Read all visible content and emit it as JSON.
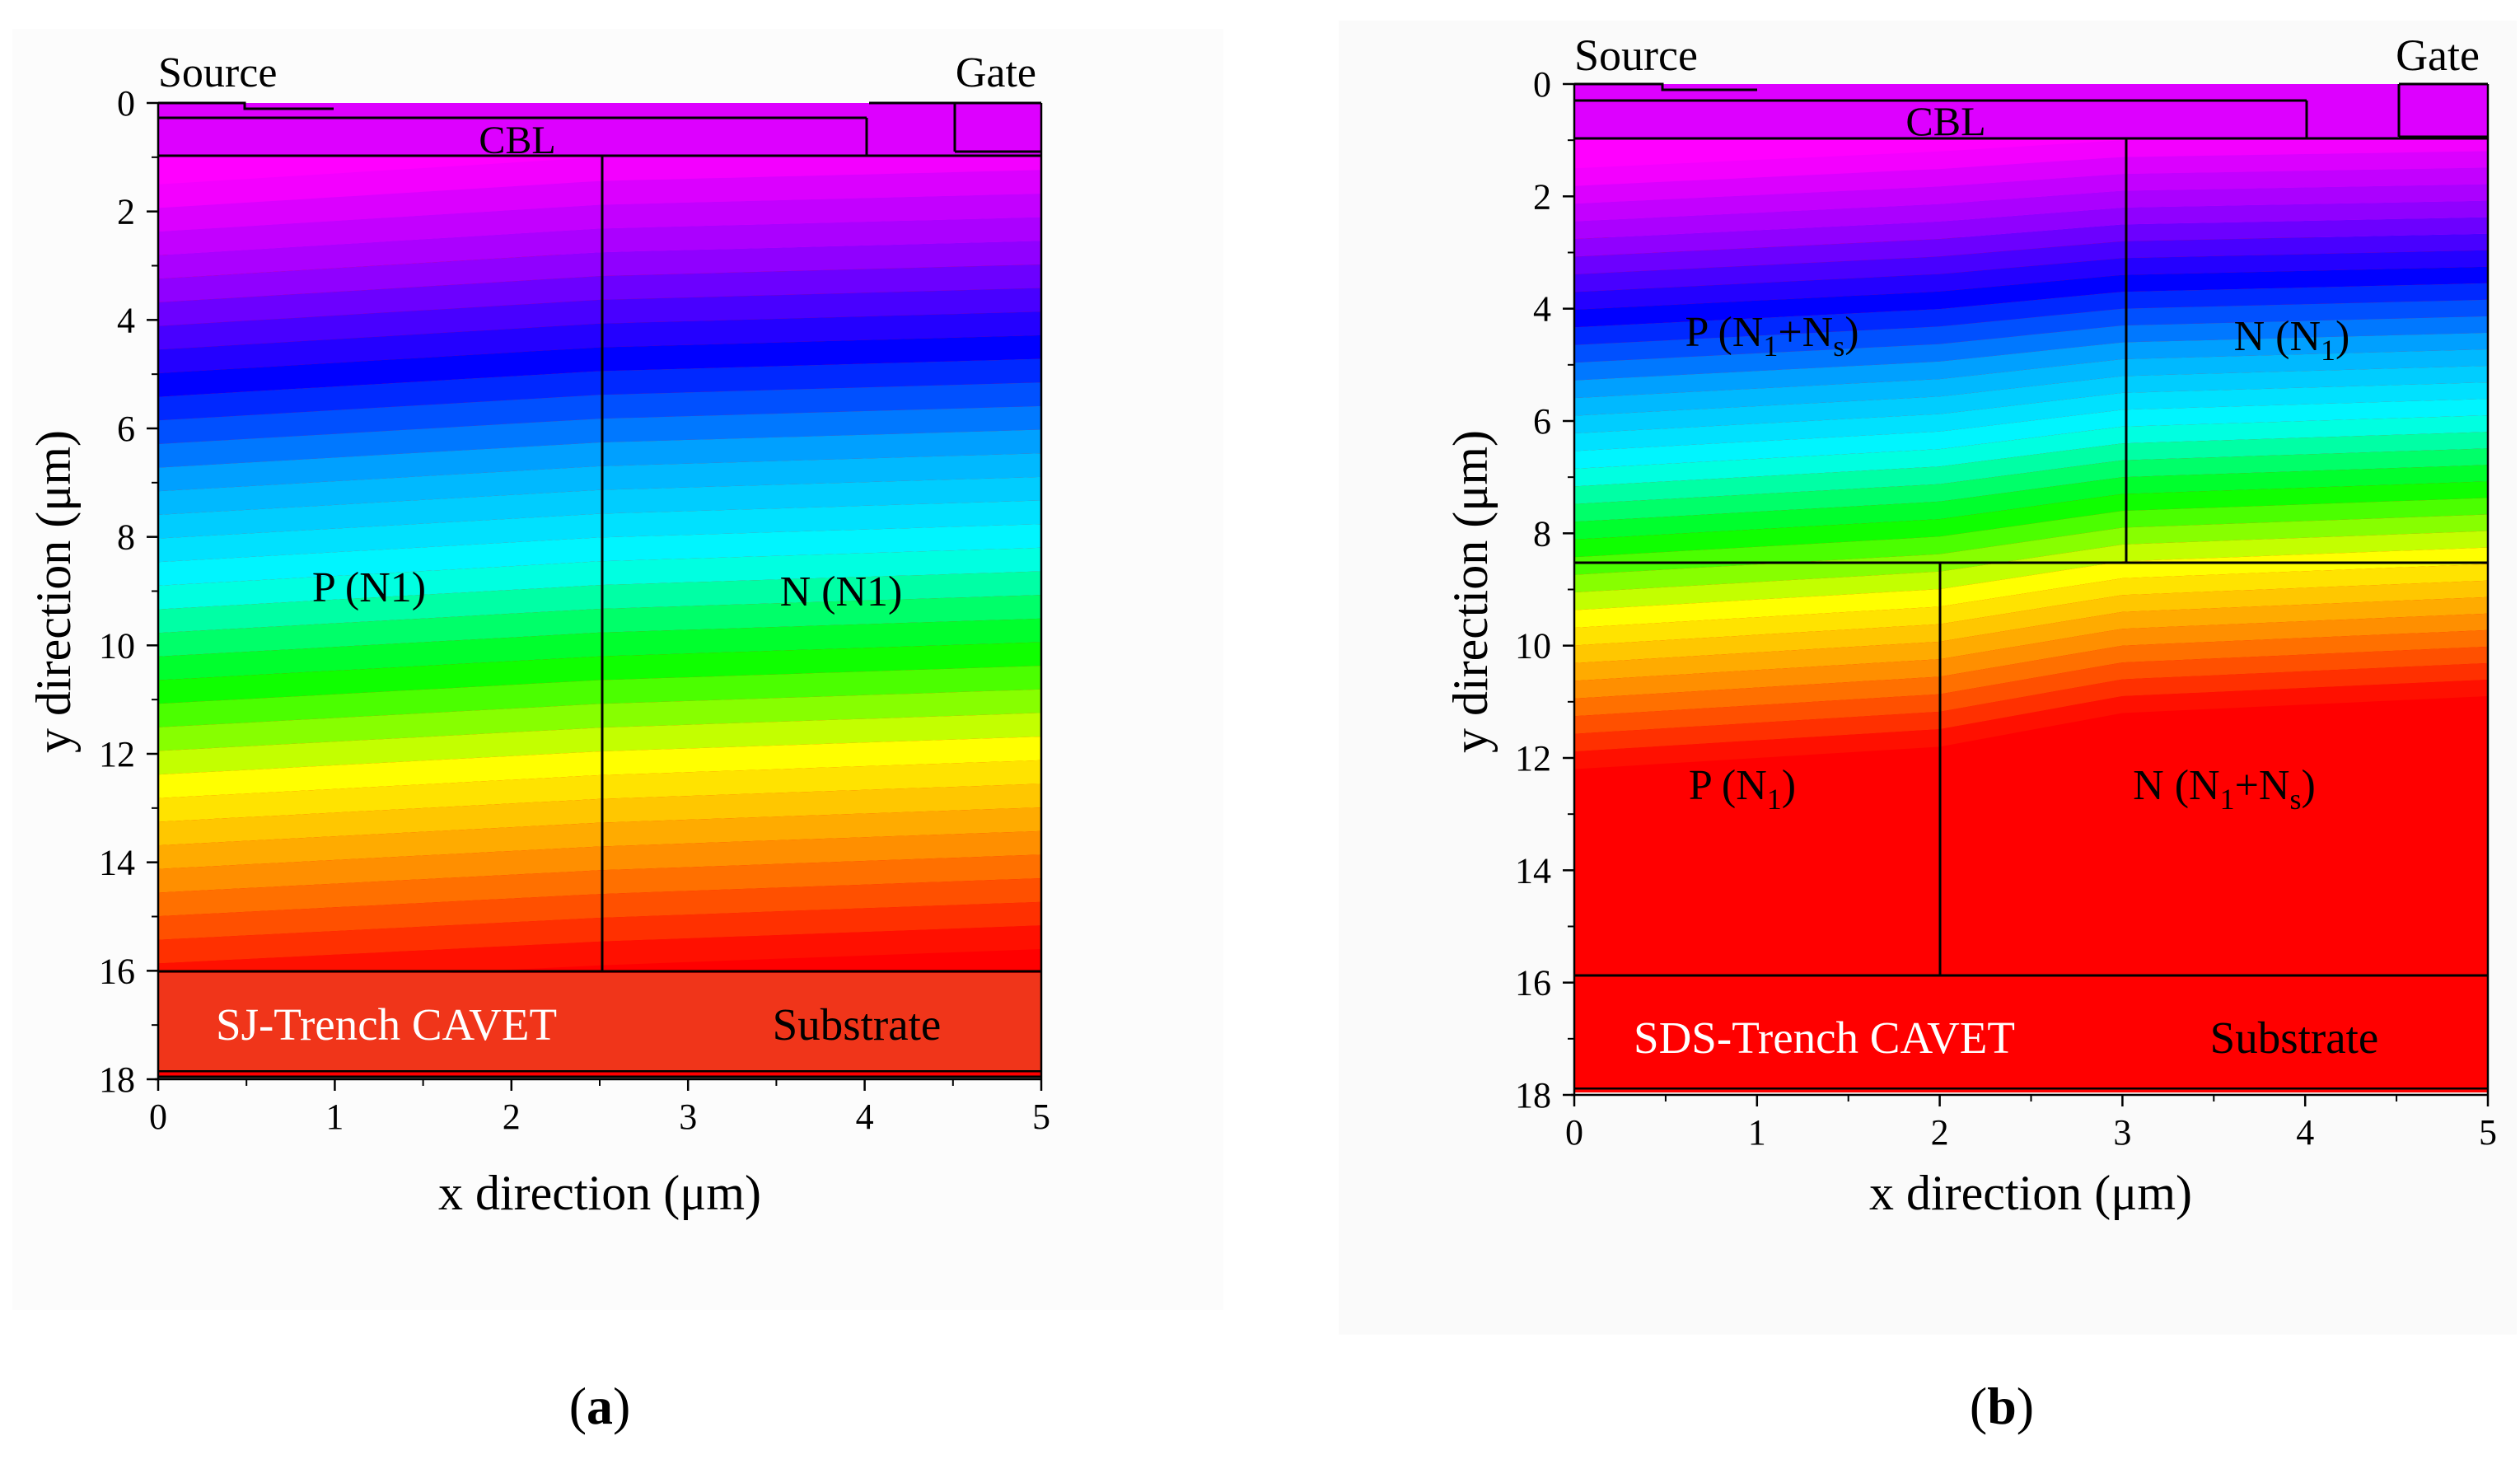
{
  "figure": {
    "panels": [
      "a",
      "b"
    ]
  },
  "chart_data": [
    {
      "type": "heatmap",
      "panel_label": "(a)",
      "panel_letter": "a",
      "xlabel": "x direction (μm)",
      "ylabel": "y direction (μm)",
      "xlim": [
        0,
        5
      ],
      "ylim": [
        18,
        0
      ],
      "xticks": [
        "0",
        "1",
        "2",
        "3",
        "4",
        "5"
      ],
      "yticks": [
        "0",
        "2",
        "4",
        "6",
        "8",
        "10",
        "12",
        "14",
        "16",
        "18"
      ],
      "top_labels": {
        "source": "Source",
        "gate": "Gate",
        "cbl": "CBL"
      },
      "device_label": "SJ-Trench CAVET",
      "substrate_label": "Substrate",
      "regions": [
        {
          "name": "P (N1)",
          "x_range": [
            0,
            2.5
          ],
          "y_range": [
            1,
            16
          ]
        },
        {
          "name": "N (N1)",
          "x_range": [
            2.5,
            5
          ],
          "y_range": [
            1,
            16
          ]
        }
      ],
      "colormap": [
        "#ff00ff",
        "#9900ff",
        "#0000ff",
        "#00aaff",
        "#00ffff",
        "#00ff00",
        "#ffff00",
        "#ff8800",
        "#ff0000"
      ],
      "field_profile": {
        "x": [
          0,
          2.5,
          5
        ],
        "y_top": [
          1.5,
          1.0,
          0.8
        ],
        "y_bottom": [
          16.3,
          15.9,
          15.6
        ]
      },
      "colors": {
        "source_gate": "#dd00ff",
        "substrate": "#f0351a"
      }
    },
    {
      "type": "heatmap",
      "panel_label": "(b)",
      "panel_letter": "b",
      "xlabel": "x direction (μm)",
      "ylabel": "y direction (μm)",
      "xlim": [
        0,
        5
      ],
      "ylim": [
        18,
        0
      ],
      "xticks": [
        "0",
        "1",
        "2",
        "3",
        "4",
        "5"
      ],
      "yticks": [
        "0",
        "2",
        "4",
        "6",
        "8",
        "10",
        "12",
        "14",
        "16",
        "18"
      ],
      "top_labels": {
        "source": "Source",
        "gate": "Gate",
        "cbl": "CBL"
      },
      "device_label": "SDS-Trench CAVET",
      "substrate_label": "Substrate",
      "regions": [
        {
          "name": "P (N1+Ns)",
          "base": "P (N",
          "sub1": "1",
          "mid": "+N",
          "sub2": "s",
          "end": ")",
          "x_range": [
            0,
            3.02
          ],
          "y_range": [
            1,
            8.6
          ]
        },
        {
          "name": "N (N1)",
          "base": "N (N",
          "sub1": "1",
          "end": ")",
          "x_range": [
            3.02,
            5
          ],
          "y_range": [
            1,
            8.6
          ]
        },
        {
          "name": "P (N1)",
          "base": "P (N",
          "sub1": "1",
          "end": ")",
          "x_range": [
            0,
            2.0
          ],
          "y_range": [
            8.6,
            15.9
          ]
        },
        {
          "name": "N (N1+Ns)",
          "base": "N (N",
          "sub1": "1",
          "mid": "+N",
          "sub2": "s",
          "end": ")",
          "x_range": [
            2.0,
            5
          ],
          "y_range": [
            8.6,
            15.9
          ]
        }
      ],
      "colormap": [
        "#ff00ff",
        "#9900ff",
        "#0000ff",
        "#00aaff",
        "#00ffff",
        "#00ff00",
        "#ffff00",
        "#ff8800",
        "#ff0000"
      ],
      "field_profile": {
        "x": [
          0,
          2.0,
          3.0,
          5
        ],
        "y_top": [
          1.5,
          1.2,
          1.0,
          0.9
        ],
        "y_bottom": [
          12.2,
          11.8,
          11.2,
          10.9
        ]
      },
      "colors": {
        "source_gate": "#dd00ff",
        "substrate": "#f0351a"
      }
    }
  ]
}
